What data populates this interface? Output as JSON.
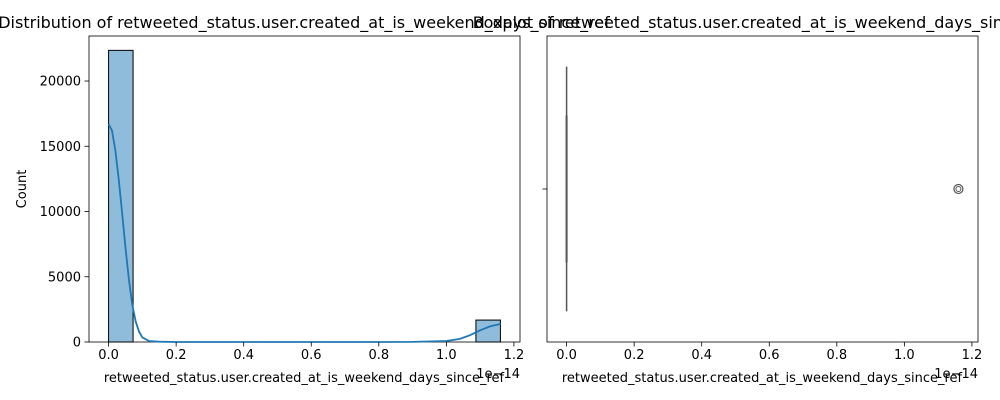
{
  "chart_data": [
    {
      "type": "bar",
      "title": "Distribution of retweeted_status.user.created_at_is_weekend_days_since_ref",
      "xlabel": "retweeted_status.user.created_at_is_weekend_days_since_ref",
      "ylabel": "Count",
      "x_offset_label": "1e−14",
      "xlim": [
        -0.058,
        1.218
      ],
      "ylim": [
        0,
        23450
      ],
      "xticks": [
        0.0,
        0.2,
        0.4,
        0.6,
        0.8,
        1.0,
        1.2
      ],
      "xtick_labels": [
        "0.0",
        "0.2",
        "0.4",
        "0.6",
        "0.8",
        "1.0",
        "1.2"
      ],
      "yticks": [
        0,
        5000,
        10000,
        15000,
        20000
      ],
      "ytick_labels": [
        "0",
        "5000",
        "10000",
        "15000",
        "20000"
      ],
      "bar_fill": "#8fbcdb",
      "kde_color": "#1f77b4",
      "bars": [
        {
          "x0": 0.0,
          "x1": 0.0725,
          "count": 22350
        },
        {
          "x0": 1.0875,
          "x1": 1.16,
          "count": 1680
        }
      ],
      "kde": {
        "x": [
          0.0,
          0.01,
          0.02,
          0.03,
          0.04,
          0.05,
          0.06,
          0.07,
          0.08,
          0.09,
          0.1,
          0.12,
          0.15,
          0.2,
          0.4,
          0.6,
          0.8,
          0.9,
          1.0,
          1.04,
          1.07,
          1.1,
          1.13,
          1.16
        ],
        "y": [
          16700,
          16200,
          14700,
          12500,
          9900,
          7200,
          4800,
          2900,
          1600,
          800,
          350,
          80,
          20,
          0,
          0,
          0,
          0,
          10,
          80,
          240,
          520,
          900,
          1200,
          1380
        ]
      }
    },
    {
      "type": "box",
      "title": "Boxplot of retweeted_status.user.created_at_is_weekend_days_since_ref",
      "xlabel": "retweeted_status.user.created_at_is_weekend_days_since_ref",
      "x_offset_label": "1e−14",
      "xlim": [
        -0.058,
        1.218
      ],
      "xticks": [
        0.0,
        0.2,
        0.4,
        0.6,
        0.8,
        1.0,
        1.2
      ],
      "xtick_labels": [
        "0.0",
        "0.2",
        "0.4",
        "0.6",
        "0.8",
        "1.0",
        "1.2"
      ],
      "box": {
        "q1": 0.0,
        "median": 0.0,
        "q3": 0.0,
        "whisker_low": 0.0,
        "whisker_high": 0.0
      },
      "outliers": [
        1.16
      ],
      "line_color": "#555555"
    }
  ]
}
